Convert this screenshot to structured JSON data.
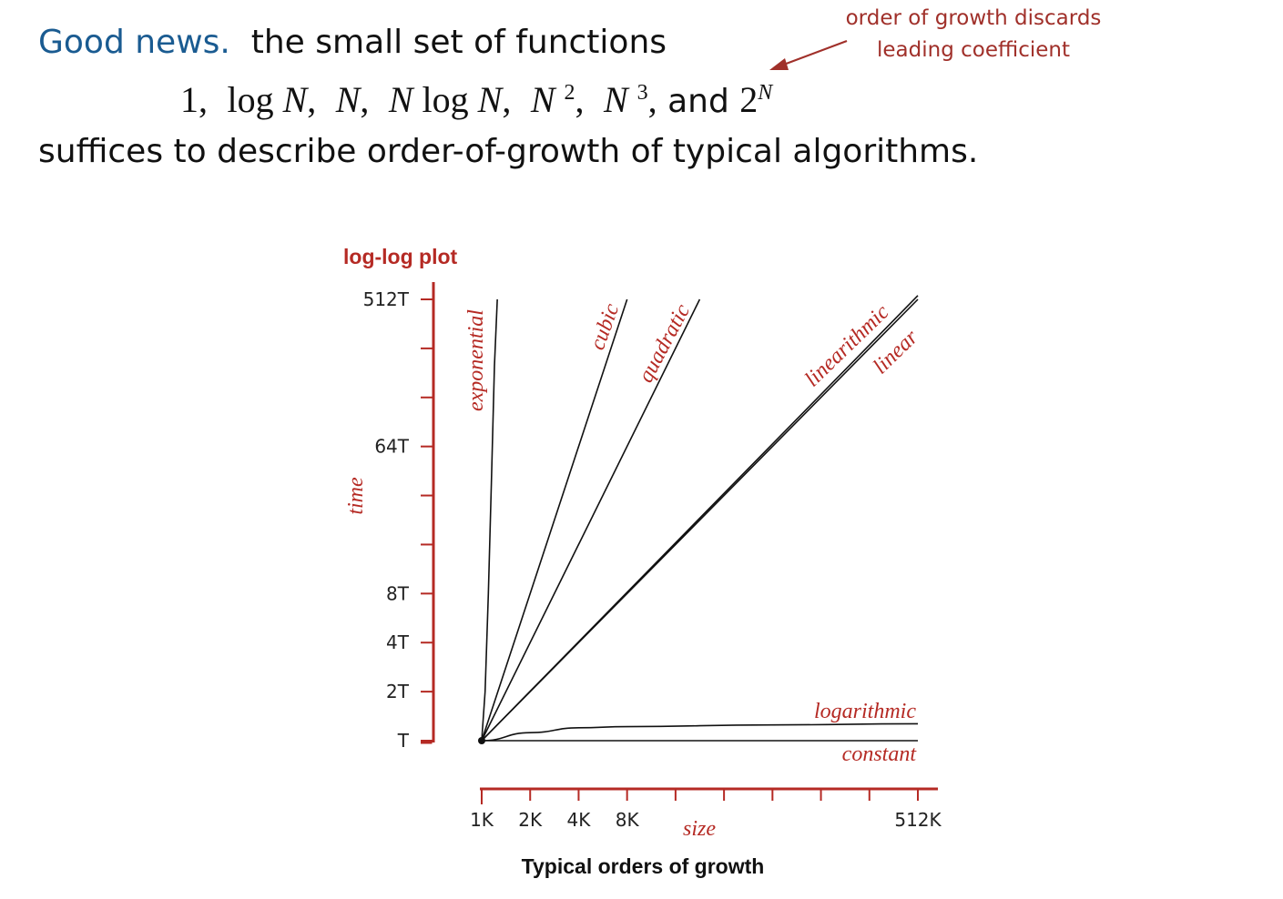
{
  "text": {
    "good_news": "Good news.",
    "line1_rest": "the small set of functions",
    "fn_1": "1,",
    "fn_log": "log",
    "fn_N": "N",
    "comma": ",",
    "fn_logN": "log",
    "fn_and": "and",
    "fn_2": "2",
    "sup_2": "2",
    "sup_3": "3",
    "sup_N": "N",
    "line3": "suffices to describe order-of-growth of typical algorithms.",
    "note_line1": "order of growth discards",
    "note_line2": "leading coefficient"
  },
  "colors": {
    "accent_blue": "#1a5b91",
    "accent_red": "#b52a24",
    "curve": "#111111"
  },
  "chart_data": {
    "type": "line",
    "title": "log-log plot",
    "caption": "Typical orders of growth",
    "xlabel": "size",
    "ylabel": "time",
    "xscale": "log2",
    "yscale": "log2",
    "x_unit": "K",
    "y_unit": "T",
    "x_ticks": [
      1,
      2,
      4,
      8,
      16,
      32,
      64,
      128,
      256,
      512
    ],
    "x_tick_labels": [
      "1K",
      "2K",
      "4K",
      "8K",
      "",
      "",
      "",
      "",
      "",
      "512K"
    ],
    "y_ticks": [
      1,
      2,
      4,
      8,
      16,
      32,
      64,
      128,
      256,
      512
    ],
    "y_tick_labels": [
      "T",
      "2T",
      "4T",
      "8T",
      "",
      "",
      "64T",
      "",
      "",
      "512T"
    ],
    "xlim": [
      1,
      512
    ],
    "ylim": [
      1,
      512
    ],
    "series": [
      {
        "name": "constant",
        "x": [
          1,
          512
        ],
        "y": [
          1,
          1
        ]
      },
      {
        "name": "logarithmic",
        "x": [
          1,
          2,
          4,
          8,
          64,
          512
        ],
        "y": [
          1,
          1.12,
          1.2,
          1.22,
          1.25,
          1.27
        ]
      },
      {
        "name": "linear",
        "x": [
          1,
          512
        ],
        "y": [
          1,
          512
        ]
      },
      {
        "name": "linearithmic",
        "x": [
          1,
          512
        ],
        "y": [
          1,
          540
        ]
      },
      {
        "name": "quadratic",
        "x": [
          1,
          22.6
        ],
        "y": [
          1,
          512
        ]
      },
      {
        "name": "cubic",
        "x": [
          1,
          8
        ],
        "y": [
          1,
          512
        ]
      },
      {
        "name": "exponential",
        "x": [
          1,
          1.05,
          1.1,
          1.15,
          1.2,
          1.25
        ],
        "y": [
          1,
          2,
          8,
          40,
          200,
          512
        ]
      }
    ]
  }
}
